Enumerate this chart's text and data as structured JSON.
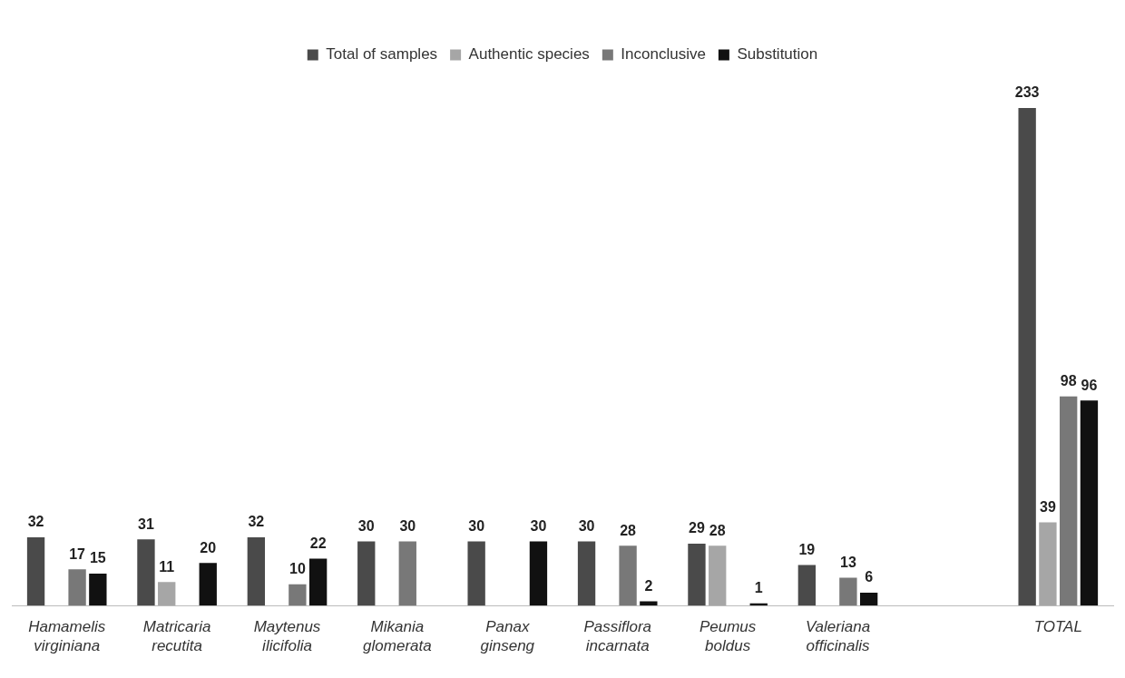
{
  "chart_data": {
    "type": "bar",
    "categories": [
      "Hamamelis virginiana",
      "Matricaria recutita",
      "Maytenus ilicifolia",
      "Mikania glomerata",
      "Panax ginseng",
      "Passiflora incarnata",
      "Peumus boldus",
      "Valeriana officinalis",
      null,
      "TOTAL"
    ],
    "series": [
      {
        "name": "Total of samples",
        "color": "#4a4a4a",
        "values": [
          32,
          31,
          32,
          30,
          30,
          30,
          29,
          19,
          null,
          233
        ]
      },
      {
        "name": "Authentic species",
        "color": "#a6a6a6",
        "values": [
          null,
          11,
          null,
          null,
          null,
          null,
          28,
          null,
          null,
          39
        ]
      },
      {
        "name": "Inconclusive",
        "color": "#787878",
        "values": [
          17,
          null,
          10,
          30,
          null,
          28,
          null,
          13,
          null,
          98
        ]
      },
      {
        "name": "Substitution",
        "color": "#111111",
        "values": [
          15,
          20,
          22,
          null,
          30,
          2,
          1,
          6,
          null,
          96
        ]
      }
    ],
    "data_labels": true,
    "legend": "top",
    "grid": false
  }
}
